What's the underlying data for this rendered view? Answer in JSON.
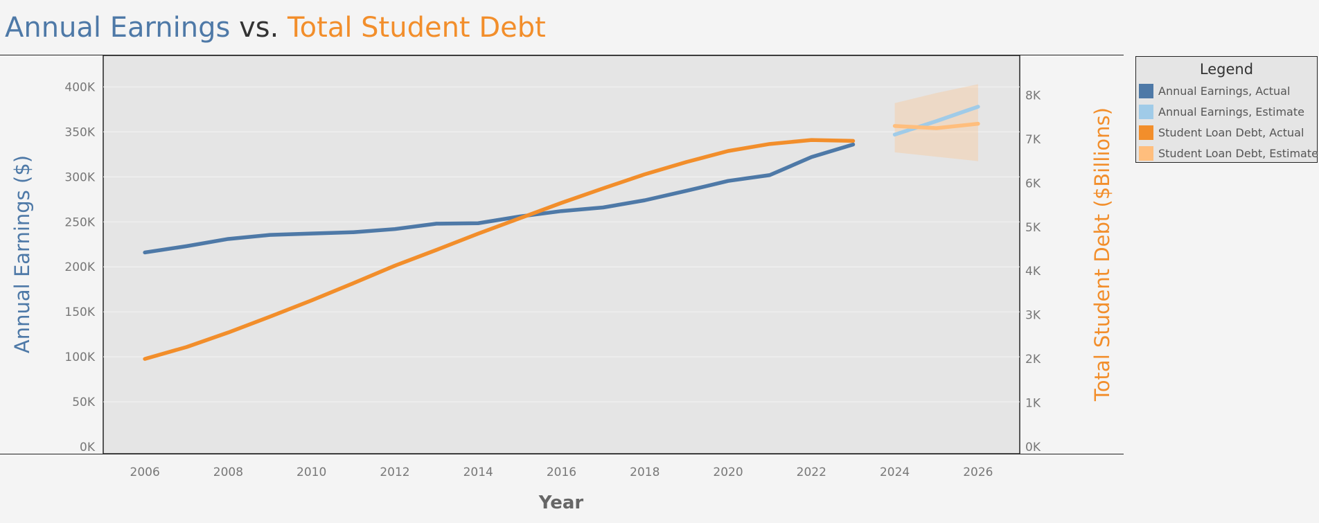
{
  "title": {
    "part1": "Annual Earnings",
    "part2": "vs.",
    "part3": "Total Student Debt"
  },
  "legend": {
    "title": "Legend",
    "items": [
      {
        "label": "Annual Earnings, Actual",
        "color": "#4e79a7"
      },
      {
        "label": "Annual Earnings, Estimate",
        "color": "#a0cbe8"
      },
      {
        "label": "Student Loan Debt, Actual",
        "color": "#f28e2b"
      },
      {
        "label": "Student Loan Debt, Estimate",
        "color": "#ffbe7d"
      }
    ]
  },
  "chart_data": {
    "type": "line",
    "xlabel": "Year",
    "ylabel": "Annual Earnings ($)",
    "ylabel_right": "Total Student Debt ($Billions)",
    "xlim": [
      2005,
      2027
    ],
    "xticks": [
      2006,
      2008,
      2010,
      2012,
      2014,
      2016,
      2018,
      2020,
      2022,
      2024,
      2026
    ],
    "ylim": [
      0,
      425000
    ],
    "yticks": [
      0,
      50000,
      100000,
      150000,
      200000,
      250000,
      300000,
      350000,
      400000
    ],
    "ytick_labels": [
      "0K",
      "50K",
      "100K",
      "150K",
      "200K",
      "250K",
      "300K",
      "350K",
      "400K"
    ],
    "ylim_right": [
      0,
      8700
    ],
    "yticks_right": [
      0,
      1000,
      2000,
      3000,
      4000,
      5000,
      6000,
      7000,
      8000
    ],
    "ytick_labels_right": [
      "0K",
      "1K",
      "2K",
      "3K",
      "4K",
      "5K",
      "6K",
      "7K",
      "8K"
    ],
    "grid": true,
    "legend_position": "right",
    "series": [
      {
        "name": "Annual Earnings, Actual",
        "axis": "left",
        "color": "#4e79a7",
        "x": [
          2006,
          2007,
          2008,
          2009,
          2010,
          2011,
          2012,
          2013,
          2014,
          2015,
          2016,
          2017,
          2018,
          2019,
          2020,
          2021,
          2022,
          2023
        ],
        "y": [
          216000,
          223000,
          231000,
          235500,
          237000,
          238500,
          242000,
          248000,
          248500,
          256000,
          262000,
          266000,
          274000,
          284500,
          295500,
          302000,
          322000,
          336000
        ]
      },
      {
        "name": "Annual Earnings, Estimate",
        "axis": "left",
        "color": "#a0cbe8",
        "x": [
          2024,
          2025,
          2026
        ],
        "y": [
          347000,
          362000,
          378000
        ]
      },
      {
        "name": "Student Loan Debt, Actual",
        "axis": "right",
        "color": "#f28e2b",
        "x": [
          2006,
          2007,
          2008,
          2009,
          2010,
          2011,
          2012,
          2013,
          2014,
          2015,
          2016,
          2017,
          2018,
          2019,
          2020,
          2021,
          2022,
          2023
        ],
        "y": [
          2000,
          2270,
          2600,
          2960,
          3330,
          3720,
          4120,
          4480,
          4850,
          5200,
          5550,
          5880,
          6200,
          6480,
          6730,
          6890,
          6980,
          6960
        ]
      },
      {
        "name": "Student Loan Debt, Estimate",
        "axis": "right",
        "color": "#ffbe7d",
        "x": [
          2024,
          2025,
          2026
        ],
        "y": [
          7300,
          7250,
          7350
        ],
        "band_upper": [
          7820,
          8050,
          8250
        ],
        "band_lower": [
          6700,
          6600,
          6500
        ]
      }
    ]
  }
}
